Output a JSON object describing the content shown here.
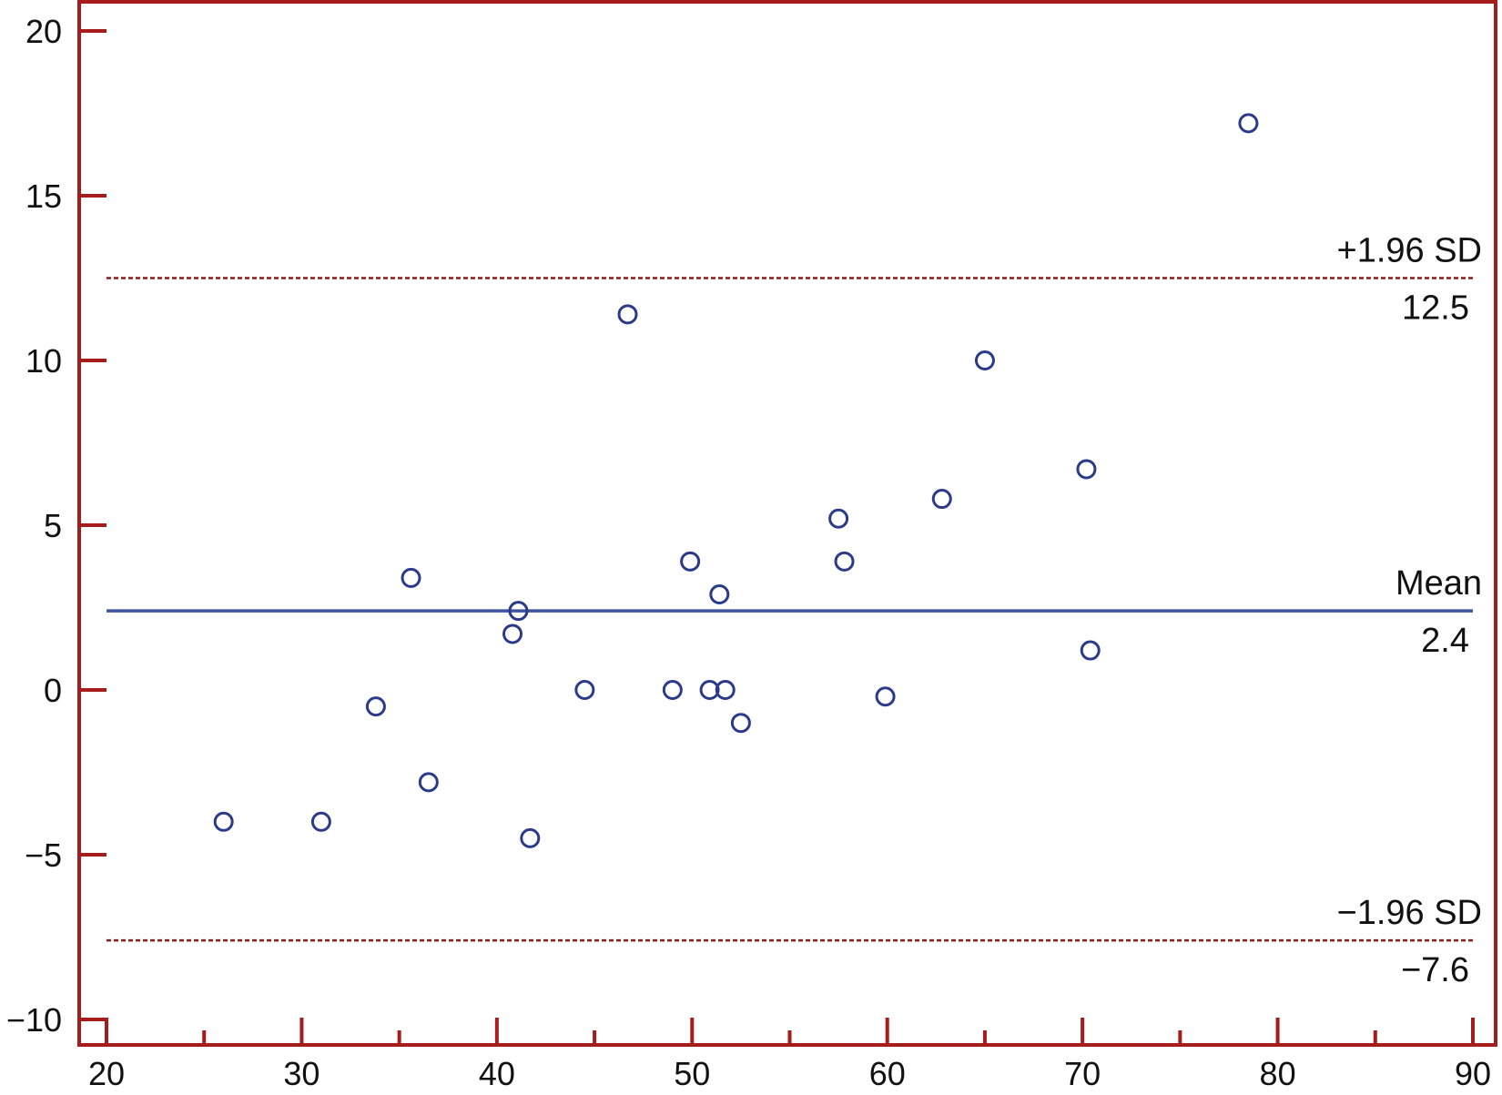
{
  "chart_data": {
    "type": "scatter",
    "title": "",
    "xlabel": "",
    "ylabel": "",
    "xlim": [
      20,
      90
    ],
    "ylim": [
      -11,
      21
    ],
    "x_ticks": [
      20,
      30,
      40,
      50,
      60,
      70,
      80,
      90
    ],
    "x_tick_labels": [
      "20",
      "30",
      "40",
      "50",
      "60",
      "70",
      "80",
      "90"
    ],
    "x_minor_ticks": [
      25,
      35,
      45,
      55,
      65,
      75,
      85
    ],
    "y_ticks": [
      20,
      15,
      10,
      5,
      0,
      -5,
      -10
    ],
    "y_tick_labels": [
      "20",
      "15",
      "10",
      "5",
      "0",
      "−5",
      "−10"
    ],
    "grid": false,
    "points": [
      {
        "x": 26.0,
        "y": -4.0
      },
      {
        "x": 31.0,
        "y": -4.0
      },
      {
        "x": 33.8,
        "y": -0.5
      },
      {
        "x": 35.6,
        "y": 3.4
      },
      {
        "x": 36.5,
        "y": -2.8
      },
      {
        "x": 40.8,
        "y": 1.7
      },
      {
        "x": 41.1,
        "y": 2.4
      },
      {
        "x": 41.7,
        "y": -4.5
      },
      {
        "x": 44.5,
        "y": 0.0
      },
      {
        "x": 46.7,
        "y": 11.4
      },
      {
        "x": 49.0,
        "y": 0.0
      },
      {
        "x": 49.9,
        "y": 3.9
      },
      {
        "x": 50.9,
        "y": 0.0
      },
      {
        "x": 51.4,
        "y": 2.9
      },
      {
        "x": 51.7,
        "y": 0.0
      },
      {
        "x": 52.5,
        "y": -1.0
      },
      {
        "x": 57.5,
        "y": 5.2
      },
      {
        "x": 57.8,
        "y": 3.9
      },
      {
        "x": 59.9,
        "y": -0.2
      },
      {
        "x": 62.8,
        "y": 5.8
      },
      {
        "x": 65.0,
        "y": 10.0
      },
      {
        "x": 70.2,
        "y": 6.7
      },
      {
        "x": 70.4,
        "y": 1.2
      },
      {
        "x": 78.5,
        "y": 17.2
      }
    ],
    "reference_lines": [
      {
        "name": "+1.96 SD",
        "value": 12.5,
        "value_label": "12.5",
        "style": "dashed",
        "color": "#8b1a1a"
      },
      {
        "name": "Mean",
        "value": 2.4,
        "value_label": "2.4",
        "style": "solid",
        "color": "#3d55a0"
      },
      {
        "name": "−1.96 SD",
        "value": -7.6,
        "value_label": "−7.6",
        "style": "dashed",
        "color": "#8b1a1a"
      }
    ],
    "colors": {
      "axis": "#a61b1b",
      "marker": "#2b3a8a"
    }
  }
}
